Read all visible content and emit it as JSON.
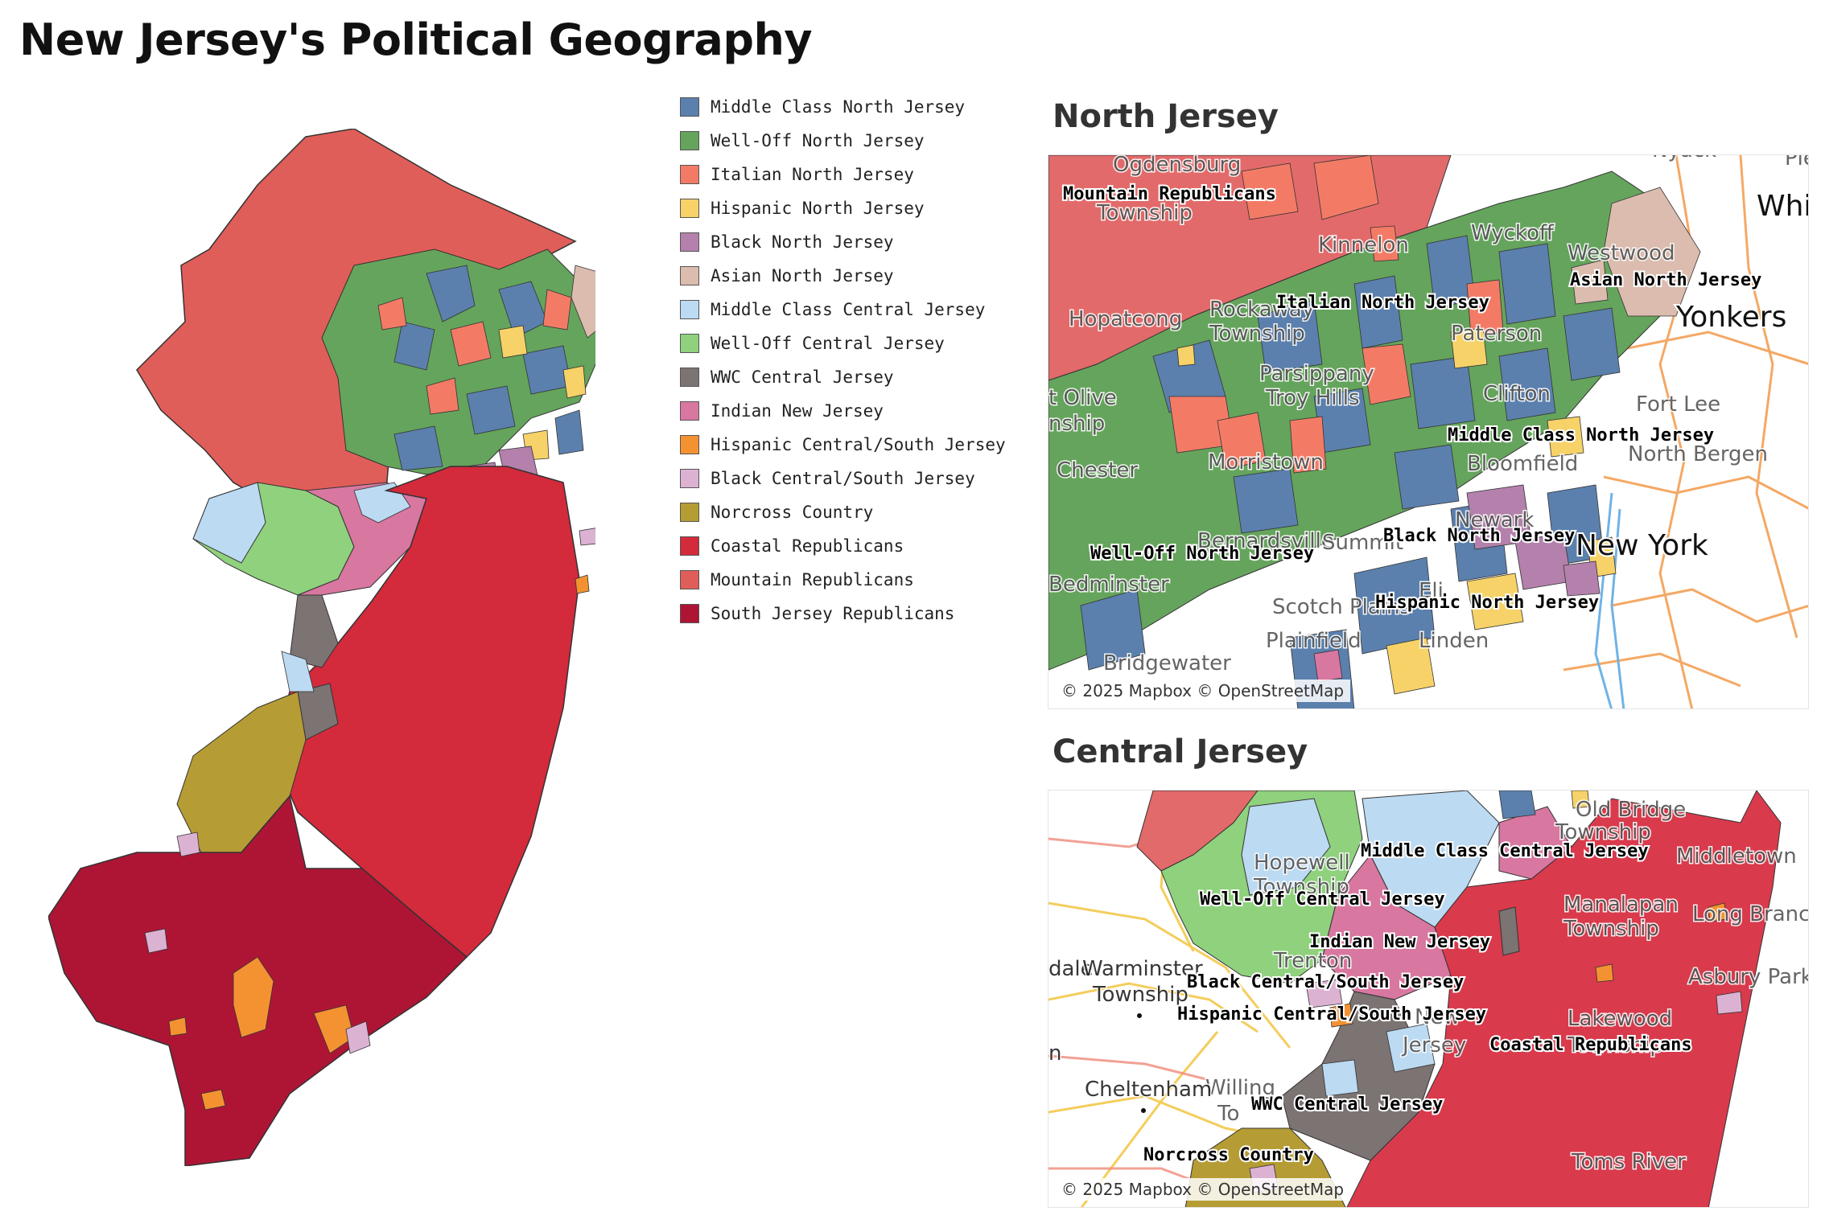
{
  "title": "New Jersey's Political Geography",
  "colors": {
    "mcnj": "#5b80ad",
    "wonj": "#65a45c",
    "itnj": "#f37b66",
    "hinj": "#f6d268",
    "blnj": "#b381ab",
    "asnj": "#dbbcae",
    "mccj": "#bcdaf2",
    "wocj": "#8fd17d",
    "wwc": "#7c7373",
    "innj": "#d877a0",
    "hics": "#f49232",
    "blcs": "#dcb2d3",
    "norc": "#b59c34",
    "coastal": "#d32a3c",
    "mountain": "#e05e59",
    "south": "#ae1535"
  },
  "legend": [
    {
      "label": "Middle Class North Jersey",
      "color": "#5b80ad"
    },
    {
      "label": "Well-Off North Jersey",
      "color": "#65a45c"
    },
    {
      "label": "Italian North Jersey",
      "color": "#f37b66"
    },
    {
      "label": "Hispanic North Jersey",
      "color": "#f6d268"
    },
    {
      "label": "Black North Jersey",
      "color": "#b381ab"
    },
    {
      "label": "Asian North Jersey",
      "color": "#dbbcae"
    },
    {
      "label": "Middle Class Central Jersey",
      "color": "#bcdaf2"
    },
    {
      "label": "Well-Off Central Jersey",
      "color": "#8fd17d"
    },
    {
      "label": "WWC Central Jersey",
      "color": "#7c7373"
    },
    {
      "label": "Indian New Jersey",
      "color": "#d877a0"
    },
    {
      "label": "Hispanic Central/South Jersey",
      "color": "#f49232"
    },
    {
      "label": "Black Central/South Jersey",
      "color": "#dcb2d3"
    },
    {
      "label": "Norcross Country",
      "color": "#b59c34"
    },
    {
      "label": "Coastal Republicans",
      "color": "#d32a3c"
    },
    {
      "label": "Mountain Republicans",
      "color": "#e05e59"
    },
    {
      "label": "South Jersey Republicans",
      "color": "#ae1535"
    }
  ],
  "north": {
    "title": "North Jersey",
    "attribution": "© 2025 Mapbox © OpenStreetMap",
    "regions": {
      "mountain": "Mountain Republicans",
      "italian": "Italian North Jersey",
      "asian": "Asian North Jersey",
      "middle": "Middle Class North Jersey",
      "black": "Black North Jersey",
      "welloff": "Well-Off North Jersey",
      "hispanic": "Hispanic North Jersey"
    },
    "places": {
      "ogdensburg": "Ogdensburg",
      "township": "Township",
      "kinnelon": "Kinnelon",
      "wyckoff": "Wyckoff",
      "westwood": "Westwood",
      "hopatcong": "Hopatcong",
      "rockaway": "Rockaway",
      "rockaway_twp": "Township",
      "parsippany": "Parsippany",
      "troy": "Troy Hills",
      "olive": "t Olive",
      "olive_twp": "nship",
      "morristown": "Morristown",
      "chester": "Chester",
      "bernardsville": "Bernardsville",
      "summit": "Summit",
      "bedminster": "Bedminster",
      "scotch": "Scotch Plains",
      "plainfield": "Plainfield",
      "bridgewater": "Bridgewater",
      "linden": "Linden",
      "paterson": "Paterson",
      "clifton": "Clifton",
      "bloomfield": "Bloomfield",
      "newark": "Newark",
      "fortlee": "Fort Lee",
      "northbergen": "North Bergen",
      "elizabeth": "Eli",
      "nyack": "Nyack",
      "plea": "Plea"
    },
    "cities": {
      "whi": "Whi",
      "yonkers": "Yonkers",
      "newyork": "New York"
    }
  },
  "central": {
    "title": "Central Jersey",
    "attribution": "© 2025 Mapbox © OpenStreetMap",
    "regions": {
      "middle": "Middle Class Central Jersey",
      "welloff": "Well-Off Central Jersey",
      "indian": "Indian New Jersey",
      "black": "Black Central/South Jersey",
      "hispanic": "Hispanic Central/South Jersey",
      "coastal": "Coastal Republicans",
      "wwc": "WWC Central Jersey",
      "norcross": "Norcross Country"
    },
    "places": {
      "oldbridge": "Old Bridge",
      "oldbridge_twp": "Township",
      "hopewell": "Hopewell",
      "hopewell_twp": "Township",
      "middletown": "Middletown",
      "manalapan": "Manalapan",
      "manalapan_twp": "Township",
      "longbranch": "Long Branch",
      "trenton": "Trenton",
      "asbury": "Asbury Park",
      "lakewood": "Lakewood",
      "lakewood_twp": "Township",
      "newjersey1": "New",
      "newjersey2": "Jersey",
      "tomsriver": "Toms River",
      "willing": "Willing",
      "willing_twp": "To"
    },
    "cities": {
      "dale": "dale",
      "warminster": "Warminster",
      "warminster_twp": "Township",
      "n": "n",
      "cheltenham": "Cheltenham"
    }
  }
}
